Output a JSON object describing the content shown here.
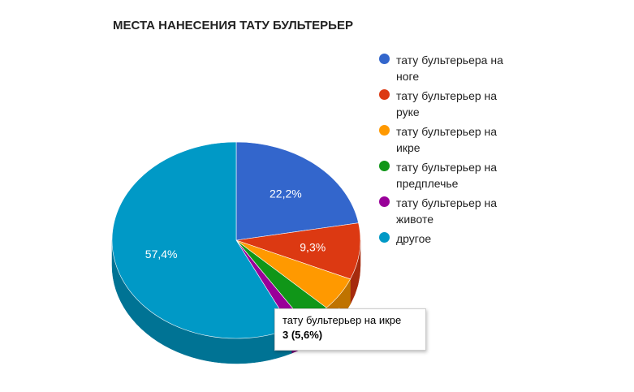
{
  "chart_data": {
    "type": "pie",
    "title": "МЕСТА НАНЕСЕНИЯ ТАТУ БУЛЬТЕРЬЕР",
    "three_d": true,
    "legend_position": "right",
    "slices": [
      {
        "label": "тату бультерьера на ноге",
        "percent": 22.2,
        "value_label": "22,2%",
        "color": "#3366cc",
        "side_color": "#264d99"
      },
      {
        "label": "тату бультерьер на руке",
        "percent": 9.3,
        "value_label": "9,3%",
        "color": "#dc3912",
        "side_color": "#a52b0e"
      },
      {
        "label": "тату бультерьер на икре",
        "percent": 5.6,
        "value": 3,
        "value_label": "",
        "color": "#ff9900",
        "side_color": "#bf7300"
      },
      {
        "label": "тату бультерьер на предплечье",
        "percent": 3.7,
        "value_label": "",
        "color": "#109618",
        "side_color": "#0c7112"
      },
      {
        "label": "тату бультерьер на животе",
        "percent": 1.9,
        "value_label": "",
        "color": "#990099",
        "side_color": "#730073"
      },
      {
        "label": "другое",
        "percent": 57.4,
        "value_label": "57,4%",
        "color": "#0099c6",
        "side_color": "#007394"
      }
    ]
  },
  "tooltip": {
    "label": "тату бультерьер на икре",
    "value": "3 (5,6%)"
  }
}
